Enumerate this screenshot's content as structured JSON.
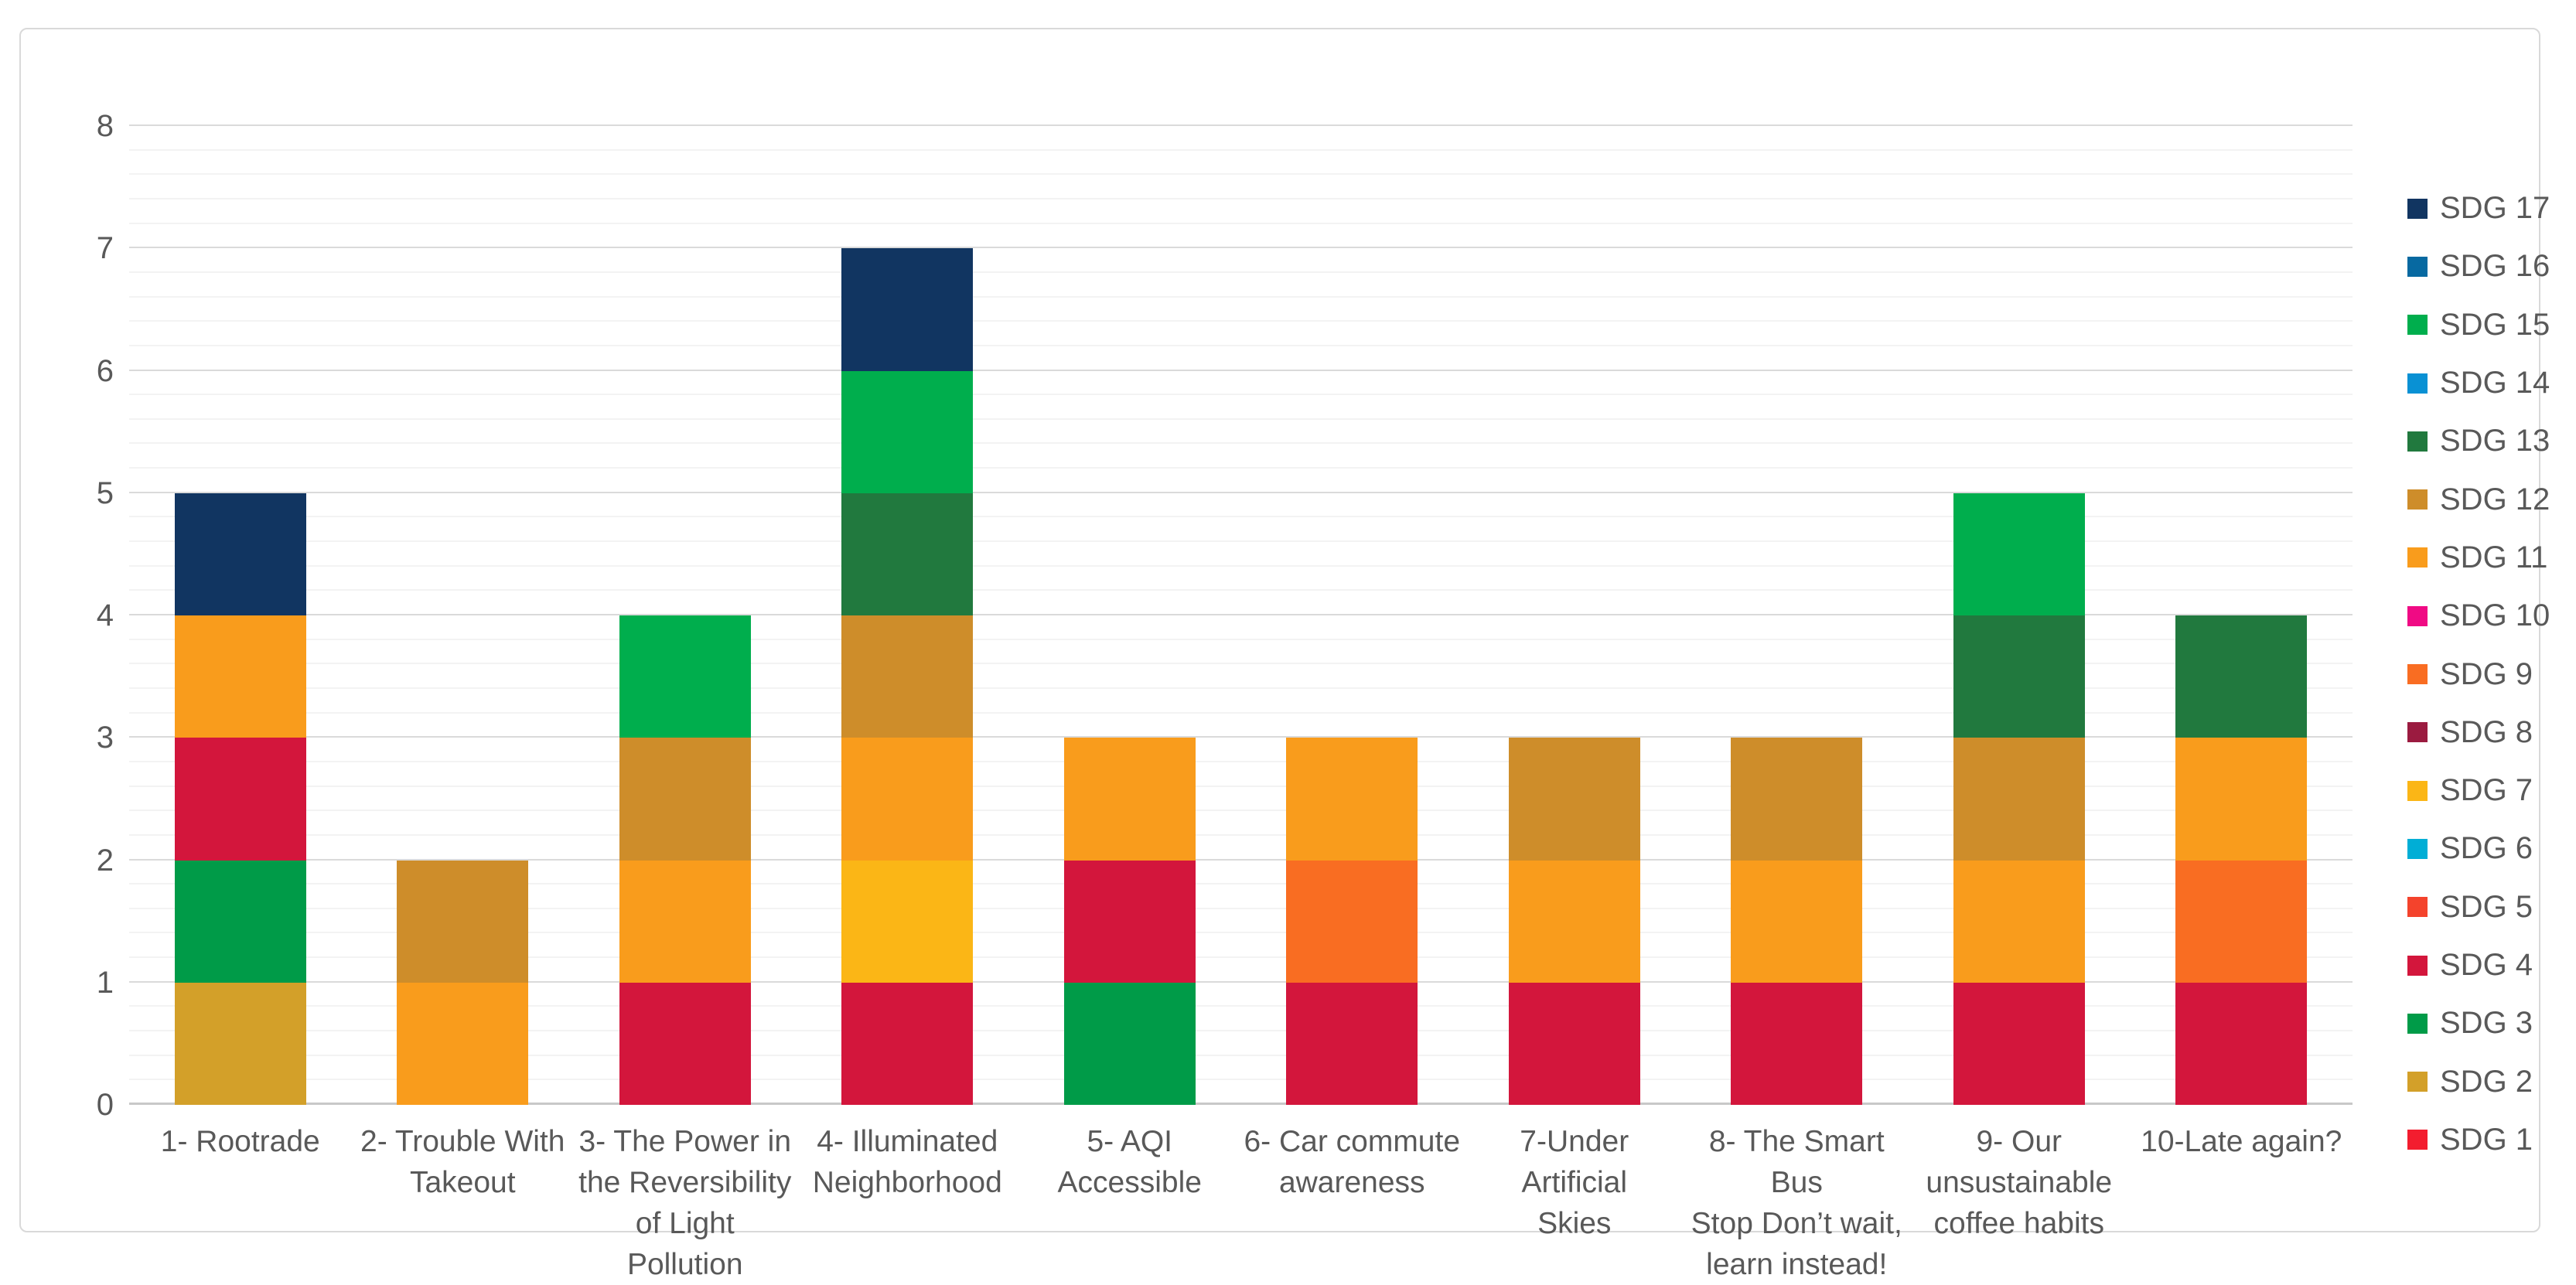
{
  "chart_data": {
    "type": "bar",
    "stacked": true,
    "title": "",
    "xlabel": "",
    "ylabel": "",
    "ylim": [
      0,
      8
    ],
    "y_major_ticks": [
      0,
      1,
      2,
      3,
      4,
      5,
      6,
      7,
      8
    ],
    "y_minor_step": 0.2,
    "grid": true,
    "legend_position": "right",
    "legend_order_top_to_bottom": [
      "SDG 17",
      "SDG 16",
      "SDG 15",
      "SDG 14",
      "SDG 13",
      "SDG 12",
      "SDG 11",
      "SDG 10",
      "SDG 9",
      "SDG 8",
      "SDG 7",
      "SDG 6",
      "SDG 5",
      "SDG 4",
      "SDG 3",
      "SDG 2",
      "SDG 1"
    ],
    "categories": [
      "1- Rootrade",
      "2- Trouble With Takeout",
      "3- The Power in the Reversibility of Light Pollution",
      "4- Illuminated Neighborhood",
      "5- AQI Accessible",
      "6- Car commute awareness",
      "7-Under Artificial Skies",
      "8- The Smart Bus Stop Don’t wait, learn instead!",
      "9- Our unsustainable coffee habits",
      "10-Late again?"
    ],
    "category_label_lines": [
      [
        "1- Rootrade"
      ],
      [
        "2- Trouble With",
        "Takeout"
      ],
      [
        "3- The Power in",
        "the Reversibility",
        "of Light Pollution"
      ],
      [
        "4- Illuminated",
        "Neighborhood"
      ],
      [
        "5- AQI Accessible"
      ],
      [
        "6- Car commute",
        "awareness"
      ],
      [
        "7-Under Artificial",
        "Skies"
      ],
      [
        "8- The Smart Bus",
        "Stop Don’t wait,",
        "learn instead!"
      ],
      [
        "9- Our",
        "unsustainable",
        "coffee habits"
      ],
      [
        "10-Late again?"
      ]
    ],
    "category_totals": [
      5,
      2,
      4,
      7,
      3,
      3,
      3,
      3,
      5,
      4
    ],
    "series": [
      {
        "name": "SDG 1",
        "color": "#F31D2F",
        "values": [
          0,
          0,
          0,
          0,
          0,
          0,
          0,
          0,
          0,
          0
        ]
      },
      {
        "name": "SDG 2",
        "color": "#D3A029",
        "values": [
          1,
          0,
          0,
          0,
          0,
          0,
          0,
          0,
          0,
          0
        ]
      },
      {
        "name": "SDG 3",
        "color": "#009B48",
        "values": [
          1,
          0,
          0,
          0,
          1,
          0,
          0,
          0,
          0,
          0
        ]
      },
      {
        "name": "SDG 4",
        "color": "#D3163C",
        "values": [
          1,
          0,
          1,
          1,
          1,
          1,
          1,
          1,
          1,
          1
        ]
      },
      {
        "name": "SDG 5",
        "color": "#F4432C",
        "values": [
          0,
          0,
          0,
          0,
          0,
          0,
          0,
          0,
          0,
          0
        ]
      },
      {
        "name": "SDG 6",
        "color": "#00AED6",
        "values": [
          0,
          0,
          0,
          0,
          0,
          0,
          0,
          0,
          0,
          0
        ]
      },
      {
        "name": "SDG 7",
        "color": "#FBB616",
        "values": [
          0,
          0,
          0,
          1,
          0,
          0,
          0,
          0,
          0,
          0
        ]
      },
      {
        "name": "SDG 8",
        "color": "#9B1B40",
        "values": [
          0,
          0,
          0,
          0,
          0,
          0,
          0,
          0,
          0,
          0
        ]
      },
      {
        "name": "SDG 9",
        "color": "#F96D22",
        "values": [
          0,
          0,
          0,
          0,
          0,
          1,
          0,
          0,
          0,
          1
        ]
      },
      {
        "name": "SDG 10",
        "color": "#F00A84",
        "values": [
          0,
          0,
          0,
          0,
          0,
          0,
          0,
          0,
          0,
          0
        ]
      },
      {
        "name": "SDG 11",
        "color": "#F99C1C",
        "values": [
          1,
          1,
          1,
          1,
          1,
          1,
          1,
          1,
          1,
          1
        ]
      },
      {
        "name": "SDG 12",
        "color": "#CE8D2A",
        "values": [
          0,
          1,
          1,
          1,
          0,
          0,
          1,
          1,
          1,
          0
        ]
      },
      {
        "name": "SDG 13",
        "color": "#21793E",
        "values": [
          0,
          0,
          0,
          1,
          0,
          0,
          0,
          0,
          1,
          1
        ]
      },
      {
        "name": "SDG 14",
        "color": "#0991D4",
        "values": [
          0,
          0,
          0,
          0,
          0,
          0,
          0,
          0,
          0,
          0
        ]
      },
      {
        "name": "SDG 15",
        "color": "#00AE4D",
        "values": [
          0,
          0,
          1,
          1,
          0,
          0,
          0,
          0,
          1,
          0
        ]
      },
      {
        "name": "SDG 16",
        "color": "#0769A1",
        "values": [
          0,
          0,
          0,
          0,
          0,
          0,
          0,
          0,
          0,
          0
        ]
      },
      {
        "name": "SDG 17",
        "color": "#113561",
        "values": [
          1,
          0,
          0,
          1,
          0,
          0,
          0,
          0,
          0,
          0
        ]
      }
    ],
    "colors": {
      "axis_text": "#595959",
      "gridline_major": "#dadada",
      "gridline_minor": "#f3f3f3",
      "axis_line": "#c8c8c8",
      "frame_border": "#d9d9d9",
      "background": "#ffffff"
    }
  }
}
